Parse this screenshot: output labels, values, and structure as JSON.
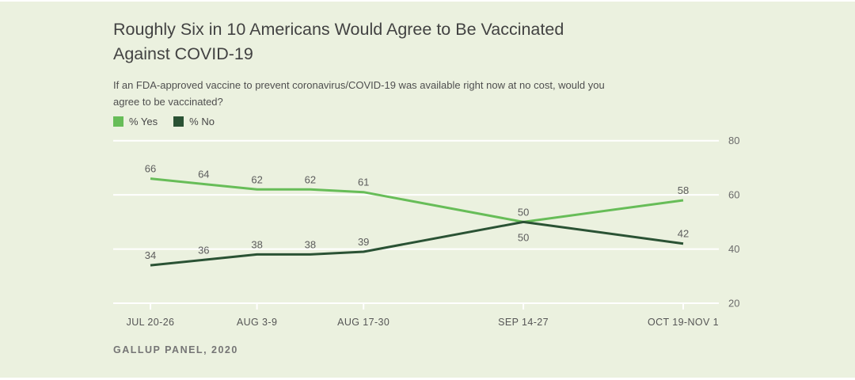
{
  "page": {
    "background": "#ebf1df"
  },
  "header": {
    "title_lines": [
      "Roughly Six in 10 Americans Would Agree to Be Vaccinated",
      "Against COVID-19"
    ],
    "subtitle_lines": [
      "If an FDA-approved vaccine to prevent coronavirus/COVID-19 was available right now at no cost, would you",
      "agree to be vaccinated?"
    ]
  },
  "legend": {
    "items": [
      {
        "label": "% Yes",
        "color": "#67bd58"
      },
      {
        "label": "% No",
        "color": "#2a5234"
      }
    ]
  },
  "chart_data": {
    "type": "line",
    "title": "Roughly Six in 10 Americans Would Agree to Be Vaccinated Against COVID-19",
    "subtitle": "If an FDA-approved vaccine to prevent coronavirus/COVID-19 was available right now at no cost, would you agree to be vaccinated?",
    "legend_position": "top-left",
    "grid": true,
    "y_axis": {
      "side": "right",
      "min": 20,
      "max": 80,
      "ticks": [
        80,
        60,
        40,
        20
      ]
    },
    "x_tick_labels": [
      {
        "label": "JUL 20-26",
        "idx": 0
      },
      {
        "label": "AUG 3-9",
        "idx": 2
      },
      {
        "label": "AUG 17-30",
        "idx": 4
      },
      {
        "label": "SEP 14-27",
        "idx": 7
      },
      {
        "label": "OCT 19-NOV 1",
        "idx": 10
      }
    ],
    "series": [
      {
        "name": "% Yes",
        "color": "#67bd58",
        "points": [
          {
            "idx": 0,
            "value": 66,
            "label_pos": "above"
          },
          {
            "idx": 1,
            "value": 64,
            "label_pos": "above"
          },
          {
            "idx": 2,
            "value": 62,
            "label_pos": "above"
          },
          {
            "idx": 3,
            "value": 62,
            "label_pos": "above"
          },
          {
            "idx": 4,
            "value": 61,
            "label_pos": "above"
          },
          {
            "idx": 7,
            "value": 50,
            "label_pos": "above"
          },
          {
            "idx": 10,
            "value": 58,
            "label_pos": "above"
          }
        ]
      },
      {
        "name": "% No",
        "color": "#2a5234",
        "points": [
          {
            "idx": 0,
            "value": 34,
            "label_pos": "above"
          },
          {
            "idx": 1,
            "value": 36,
            "label_pos": "above"
          },
          {
            "idx": 2,
            "value": 38,
            "label_pos": "above"
          },
          {
            "idx": 3,
            "value": 38,
            "label_pos": "above"
          },
          {
            "idx": 4,
            "value": 39,
            "label_pos": "above"
          },
          {
            "idx": 7,
            "value": 50,
            "label_pos": "below"
          },
          {
            "idx": 10,
            "value": 42,
            "label_pos": "above"
          }
        ]
      }
    ]
  },
  "footer": {
    "source": "GALLUP PANEL, 2020"
  }
}
